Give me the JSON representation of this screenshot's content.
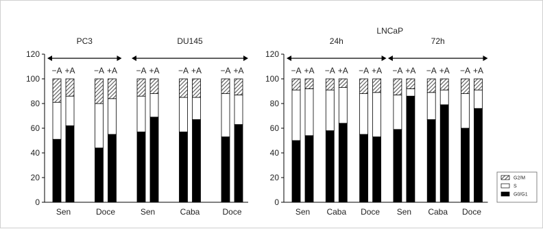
{
  "chart_data": [
    {
      "type": "bar",
      "stacked": true,
      "ylim": [
        0,
        120
      ],
      "yticks": [
        0,
        20,
        40,
        60,
        80,
        100,
        120
      ],
      "groups": [
        {
          "label": "PC3",
          "start": 0,
          "end": 1
        },
        {
          "label": "DU145",
          "start": 2,
          "end": 4
        }
      ],
      "categories": [
        "Sen",
        "Doce",
        "Sen",
        "Caba",
        "Doce"
      ],
      "conditions": [
        "−A",
        "+A"
      ],
      "bars": [
        {
          "g0g1": 51,
          "s": 30,
          "g2m": 19
        },
        {
          "g0g1": 62,
          "s": 24,
          "g2m": 14
        },
        {
          "g0g1": 44,
          "s": 36,
          "g2m": 20
        },
        {
          "g0g1": 55,
          "s": 29,
          "g2m": 16
        },
        {
          "g0g1": 57,
          "s": 29,
          "g2m": 14
        },
        {
          "g0g1": 69,
          "s": 19,
          "g2m": 12
        },
        {
          "g0g1": 57,
          "s": 28,
          "g2m": 15
        },
        {
          "g0g1": 67,
          "s": 18,
          "g2m": 15
        },
        {
          "g0g1": 53,
          "s": 35,
          "g2m": 12
        },
        {
          "g0g1": 63,
          "s": 24,
          "g2m": 13
        }
      ]
    },
    {
      "type": "bar",
      "stacked": true,
      "title": "LNCaP",
      "ylim": [
        0,
        120
      ],
      "yticks": [
        0,
        20,
        40,
        60,
        80,
        100,
        120
      ],
      "groups": [
        {
          "label": "24h",
          "start": 0,
          "end": 2
        },
        {
          "label": "72h",
          "start": 3,
          "end": 5
        }
      ],
      "categories": [
        "Sen",
        "Caba",
        "Doce",
        "Sen",
        "Caba",
        "Doce"
      ],
      "conditions": [
        "−A",
        "+A"
      ],
      "bars": [
        {
          "g0g1": 50,
          "s": 41,
          "g2m": 9
        },
        {
          "g0g1": 54,
          "s": 38,
          "g2m": 8
        },
        {
          "g0g1": 58,
          "s": 33,
          "g2m": 9
        },
        {
          "g0g1": 64,
          "s": 29,
          "g2m": 7
        },
        {
          "g0g1": 55,
          "s": 33,
          "g2m": 12
        },
        {
          "g0g1": 53,
          "s": 36,
          "g2m": 11
        },
        {
          "g0g1": 59,
          "s": 28,
          "g2m": 13
        },
        {
          "g0g1": 86,
          "s": 6,
          "g2m": 8
        },
        {
          "g0g1": 67,
          "s": 22,
          "g2m": 11
        },
        {
          "g0g1": 79,
          "s": 12,
          "g2m": 9
        },
        {
          "g0g1": 60,
          "s": 28,
          "g2m": 12
        },
        {
          "g0g1": 76,
          "s": 15,
          "g2m": 9
        }
      ]
    }
  ],
  "legend": {
    "placement": "bottom-right",
    "items": [
      {
        "key": "g2m",
        "label": "G2/M",
        "fill": "hatch"
      },
      {
        "key": "s",
        "label": "S",
        "fill": "#ffffff"
      },
      {
        "key": "g0g1",
        "label": "G0/G1",
        "fill": "#000000"
      }
    ]
  }
}
